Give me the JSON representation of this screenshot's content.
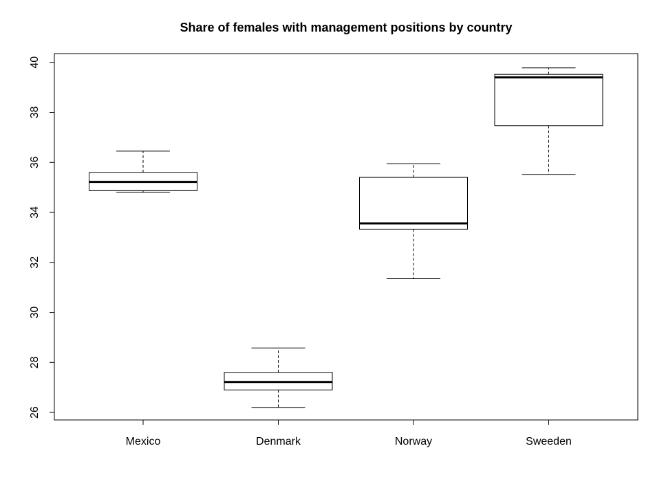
{
  "chart_data": {
    "type": "boxplot",
    "title": "Share of females with management positions by country",
    "xlabel": "",
    "ylabel": "",
    "ylim": [
      25.7,
      40.35
    ],
    "yticks": [
      26,
      28,
      30,
      32,
      34,
      36,
      38,
      40
    ],
    "categories": [
      "Mexico",
      "Denmark",
      "Norway",
      "Sweeden"
    ],
    "boxes": [
      {
        "category": "Mexico",
        "whisker_low": 34.8,
        "q1": 34.87,
        "median": 35.22,
        "q3": 35.6,
        "whisker_high": 36.45
      },
      {
        "category": "Denmark",
        "whisker_low": 26.2,
        "q1": 26.9,
        "median": 27.22,
        "q3": 27.6,
        "whisker_high": 28.58
      },
      {
        "category": "Norway",
        "whisker_low": 31.35,
        "q1": 33.33,
        "median": 33.56,
        "q3": 35.4,
        "whisker_high": 35.95
      },
      {
        "category": "Sweeden",
        "whisker_low": 35.52,
        "q1": 37.47,
        "median": 39.4,
        "q3": 39.52,
        "whisker_high": 39.78
      }
    ],
    "grid": false,
    "legend": "none"
  }
}
